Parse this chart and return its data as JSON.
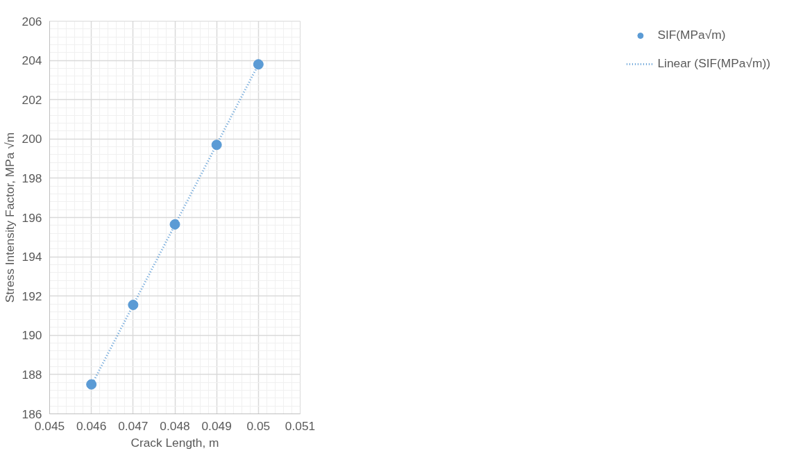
{
  "chart_data": {
    "type": "scatter",
    "xlabel": "Crack Length, m",
    "ylabel": "Stress Intensity Factor, MPa √m",
    "x": [
      0.046,
      0.047,
      0.048,
      0.049,
      0.05
    ],
    "series": [
      {
        "name": "SIF(MPa√m)",
        "color": "#5b9bd5",
        "values": [
          187.5,
          191.55,
          195.65,
          199.7,
          203.8
        ],
        "marker": "circle"
      },
      {
        "name": "Linear (SIF(MPa√m))",
        "type": "line",
        "color": "#5b9bd5",
        "line_style": "dotted",
        "x": [
          0.046,
          0.05
        ],
        "values": [
          187.45,
          203.8
        ]
      }
    ],
    "xlim": [
      0.045,
      0.051
    ],
    "xticks": [
      0.045,
      0.046,
      0.047,
      0.048,
      0.049,
      0.05,
      0.051
    ],
    "ylim": [
      186,
      206
    ],
    "yticks": [
      186,
      188,
      190,
      192,
      194,
      196,
      198,
      200,
      202,
      204,
      206
    ],
    "grid": true,
    "legend": "right"
  }
}
